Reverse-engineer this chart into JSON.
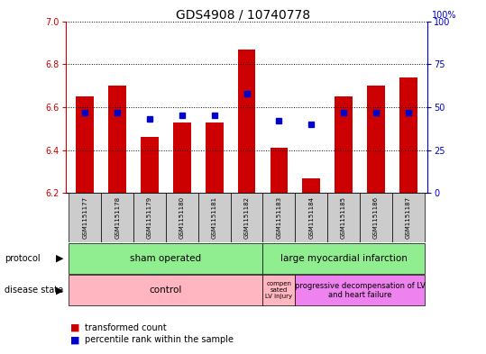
{
  "title": "GDS4908 / 10740778",
  "samples": [
    "GSM1151177",
    "GSM1151178",
    "GSM1151179",
    "GSM1151180",
    "GSM1151181",
    "GSM1151182",
    "GSM1151183",
    "GSM1151184",
    "GSM1151185",
    "GSM1151186",
    "GSM1151187"
  ],
  "red_bars_top": [
    6.65,
    6.7,
    6.46,
    6.53,
    6.53,
    6.87,
    6.41,
    6.27,
    6.65,
    6.7,
    6.74
  ],
  "blue_pct": [
    47,
    47,
    43,
    45,
    45,
    58,
    42,
    40,
    47,
    47,
    47
  ],
  "bar_base": 6.2,
  "ylim_left": [
    6.2,
    7.0
  ],
  "ylim_right": [
    0,
    100
  ],
  "yticks_left": [
    6.2,
    6.4,
    6.6,
    6.8,
    7.0
  ],
  "yticks_right": [
    0,
    25,
    50,
    75,
    100
  ],
  "red_color": "#cc0000",
  "blue_color": "#0000cc",
  "bar_width": 0.55,
  "sham_color": "#90ee90",
  "lmi_color": "#90ee90",
  "control_color": "#ffb6c1",
  "comp_color": "#ffb6c1",
  "prog_color": "#ee82ee"
}
